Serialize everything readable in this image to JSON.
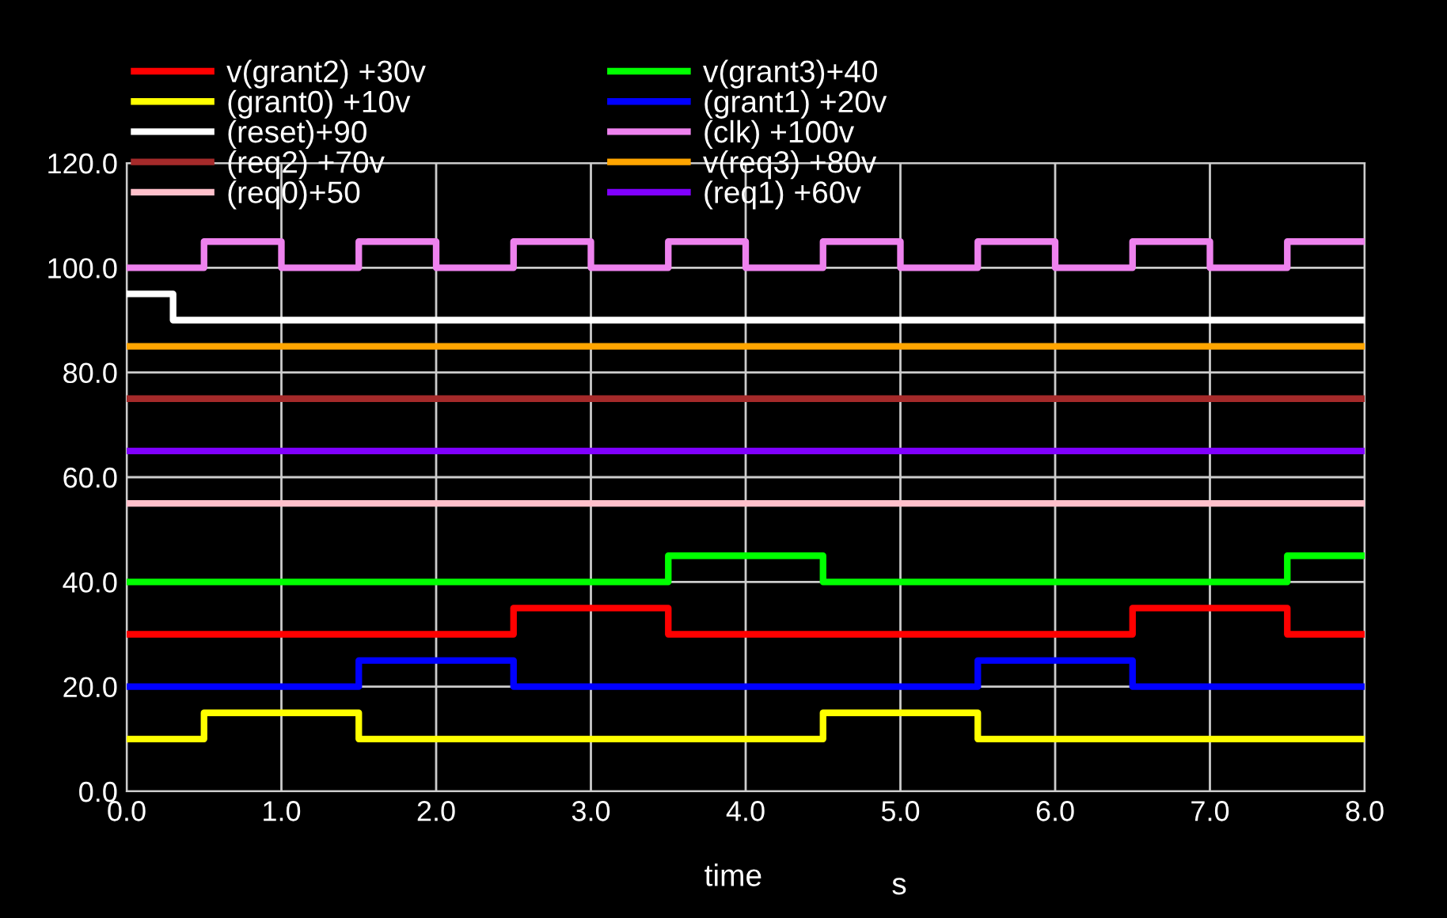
{
  "chart_data": {
    "type": "step",
    "xlabel": "time",
    "annotations": [
      "s"
    ],
    "xlim": [
      0,
      8
    ],
    "ylim": [
      0,
      120
    ],
    "xticks": [
      {
        "value": 0,
        "label": "0.0"
      },
      {
        "value": 1,
        "label": "1.0"
      },
      {
        "value": 2,
        "label": "2.0"
      },
      {
        "value": 3,
        "label": "3.0"
      },
      {
        "value": 4,
        "label": "4.0"
      },
      {
        "value": 5,
        "label": "5.0"
      },
      {
        "value": 6,
        "label": "6.0"
      },
      {
        "value": 7,
        "label": "7.0"
      },
      {
        "value": 8,
        "label": "8.0"
      }
    ],
    "yticks": [
      {
        "value": 0,
        "label": "0.0"
      },
      {
        "value": 20,
        "label": "20.0"
      },
      {
        "value": 40,
        "label": "40.0"
      },
      {
        "value": 60,
        "label": "60.0"
      },
      {
        "value": 80,
        "label": "80.0"
      },
      {
        "value": 100,
        "label": "100.0"
      },
      {
        "value": 120,
        "label": "120.0"
      }
    ],
    "grid": true,
    "legend": "top",
    "line_style": "solid",
    "marker": "none",
    "series": [
      {
        "name": "v(grant2) +30v",
        "color": "#ff0000",
        "x": [
          0,
          2.5,
          3.5,
          6.5,
          7.5,
          8
        ],
        "values": [
          30,
          35,
          30,
          35,
          30,
          30
        ]
      },
      {
        "name": "v(grant3)+40",
        "color": "#00ff00",
        "x": [
          0,
          3.5,
          4.5,
          7.5,
          8
        ],
        "values": [
          40,
          45,
          40,
          45,
          45
        ]
      },
      {
        "name": "(grant0) +10v",
        "color": "#ffff00",
        "x": [
          0,
          0.5,
          1.5,
          4.5,
          5.5,
          8
        ],
        "values": [
          10,
          15,
          10,
          15,
          10,
          10
        ]
      },
      {
        "name": "(grant1) +20v",
        "color": "#0000ff",
        "x": [
          0,
          1.5,
          2.5,
          5.5,
          6.5,
          8
        ],
        "values": [
          20,
          25,
          20,
          25,
          20,
          20
        ]
      },
      {
        "name": "(reset)+90",
        "color": "#ffffff",
        "x": [
          0,
          0.3,
          8
        ],
        "values": [
          95,
          90,
          90
        ]
      },
      {
        "name": "(clk) +100v",
        "color": "#ee82ee",
        "x": [
          0,
          0.5,
          1,
          1.5,
          2,
          2.5,
          3,
          3.5,
          4,
          4.5,
          5,
          5.5,
          6,
          6.5,
          7,
          7.5,
          8
        ],
        "values": [
          100,
          105,
          100,
          105,
          100,
          105,
          100,
          105,
          100,
          105,
          100,
          105,
          100,
          105,
          100,
          105,
          105
        ]
      },
      {
        "name": "(req2) +70v",
        "color": "#a52a2a",
        "x": [
          0,
          8
        ],
        "values": [
          75,
          75
        ]
      },
      {
        "name": "v(req3) +80v",
        "color": "#ffa500",
        "x": [
          0,
          8
        ],
        "values": [
          85,
          85
        ]
      },
      {
        "name": "(req0)+50",
        "color": "#ffc0cb",
        "x": [
          0,
          8
        ],
        "values": [
          55,
          55
        ]
      },
      {
        "name": "(req1) +60v",
        "color": "#8000ff",
        "x": [
          0,
          8
        ],
        "values": [
          65,
          65
        ]
      }
    ]
  }
}
